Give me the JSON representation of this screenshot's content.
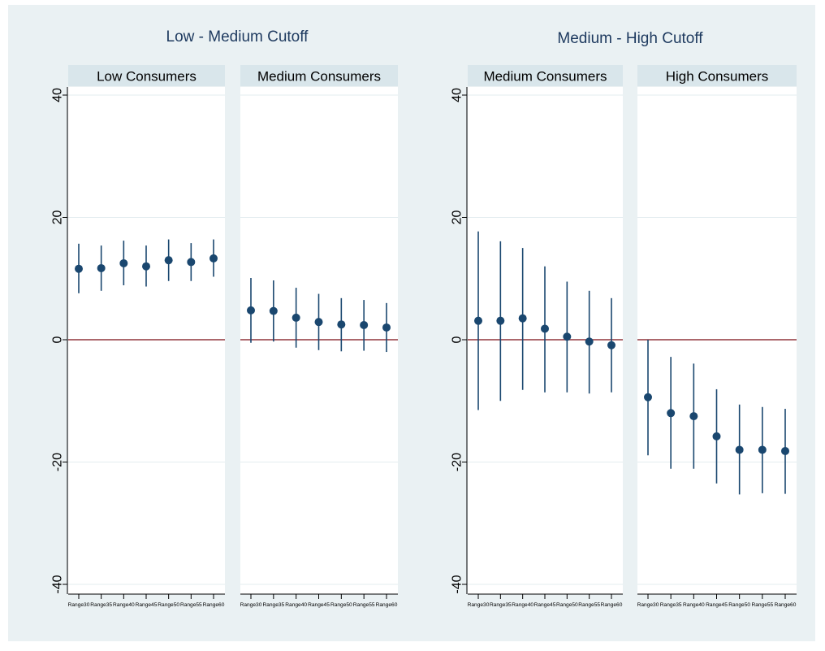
{
  "figure": {
    "background": "#eaf1f3",
    "panel_background": "#ffffff",
    "strip_background": "#d9e6eb",
    "marker_color": "#1a476f",
    "reference_line_color": "#90353b",
    "title_color": "#1e3a5f"
  },
  "groups": [
    {
      "title": "Low - Medium Cutoff"
    },
    {
      "title": "Medium - High Cutoff"
    }
  ],
  "chart_data": [
    {
      "type": "scatter",
      "group_title": "Low - Medium Cutoff",
      "panel_title": "Low Consumers",
      "categories": [
        "Range30",
        "Range35",
        "Range40",
        "Range45",
        "Range50",
        "Range55",
        "Range60"
      ],
      "estimates": [
        11.6,
        11.7,
        12.5,
        12.0,
        13.0,
        12.7,
        13.3
      ],
      "ci_lower": [
        7.6,
        8.0,
        8.9,
        8.7,
        9.6,
        9.6,
        10.3
      ],
      "ci_upper": [
        15.7,
        15.4,
        16.2,
        15.4,
        16.4,
        15.8,
        16.4
      ],
      "ylim": [
        -40,
        40
      ],
      "yticks": [
        -40,
        -20,
        0,
        20,
        40
      ],
      "reference_line": 0,
      "grid": true
    },
    {
      "type": "scatter",
      "group_title": "Low - Medium Cutoff",
      "panel_title": "Medium Consumers",
      "categories": [
        "Range30",
        "Range35",
        "Range40",
        "Range45",
        "Range50",
        "Range55",
        "Range60"
      ],
      "estimates": [
        4.8,
        4.7,
        3.6,
        2.9,
        2.5,
        2.4,
        2.0
      ],
      "ci_lower": [
        -0.5,
        -0.3,
        -1.3,
        -1.7,
        -1.9,
        -1.8,
        -2.0
      ],
      "ci_upper": [
        10.1,
        9.7,
        8.5,
        7.5,
        6.8,
        6.5,
        6.0
      ],
      "ylim": [
        -40,
        40
      ],
      "yticks": [
        -40,
        -20,
        0,
        20,
        40
      ],
      "reference_line": 0,
      "grid": true
    },
    {
      "type": "scatter",
      "group_title": "Medium - High Cutoff",
      "panel_title": "Medium Consumers",
      "categories": [
        "Range30",
        "Range35",
        "Range40",
        "Range45",
        "Range50",
        "Range55",
        "Range60"
      ],
      "estimates": [
        3.1,
        3.1,
        3.5,
        1.8,
        0.5,
        -0.3,
        -0.9
      ],
      "ci_lower": [
        -11.5,
        -10.0,
        -8.2,
        -8.6,
        -8.6,
        -8.8,
        -8.6
      ],
      "ci_upper": [
        17.7,
        16.1,
        15.0,
        12.0,
        9.5,
        8.0,
        6.8
      ],
      "ylim": [
        -40,
        40
      ],
      "yticks": [
        -40,
        -20,
        0,
        20,
        40
      ],
      "reference_line": 0,
      "grid": true
    },
    {
      "type": "scatter",
      "group_title": "Medium - High Cutoff",
      "panel_title": "High Consumers",
      "categories": [
        "Range30",
        "Range35",
        "Range40",
        "Range45",
        "Range50",
        "Range55",
        "Range60"
      ],
      "estimates": [
        -9.4,
        -12.0,
        -12.5,
        -15.8,
        -18.0,
        -18.0,
        -18.2
      ],
      "ci_lower": [
        -18.9,
        -21.1,
        -21.1,
        -23.5,
        -25.3,
        -25.1,
        -25.2
      ],
      "ci_upper": [
        0.0,
        -2.8,
        -3.9,
        -8.1,
        -10.6,
        -11.0,
        -11.3
      ],
      "ylim": [
        -40,
        40
      ],
      "yticks": [
        -40,
        -20,
        0,
        20,
        40
      ],
      "reference_line": 0,
      "grid": true
    }
  ]
}
